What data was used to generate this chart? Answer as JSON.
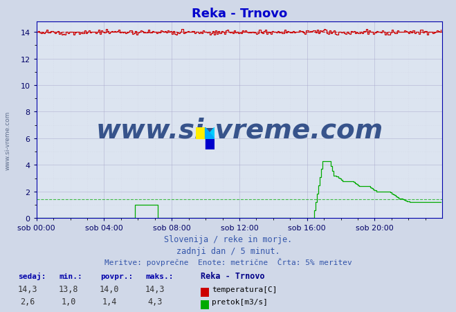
{
  "title": "Reka - Trnovo",
  "title_color": "#0000cc",
  "bg_color": "#d0d8e8",
  "plot_bg_color": "#dce4f0",
  "xlabel_ticks": [
    "sob 00:00",
    "sob 04:00",
    "sob 08:00",
    "sob 12:00",
    "sob 16:00",
    "sob 20:00"
  ],
  "yticks": [
    0,
    2,
    4,
    6,
    8,
    10,
    12,
    14
  ],
  "ylim": [
    0,
    14.8
  ],
  "xlim": [
    0,
    288
  ],
  "grid_color_major": "#aaaacc",
  "grid_color_minor": "#ccccdd",
  "temp_color": "#cc0000",
  "flow_color": "#00aa00",
  "avg_temp": 14.0,
  "avg_flow": 1.4,
  "watermark_text": "www.si-vreme.com",
  "watermark_color": "#1a3a7a",
  "footer_line1": "Slovenija / reke in morje.",
  "footer_line2": "zadnji dan / 5 minut.",
  "footer_line3": "Meritve: povprečne  Enote: metrične  Črta: 5% meritev",
  "footer_color": "#3355aa",
  "legend_title": "Reka - Trnovo",
  "legend_title_color": "#000088",
  "table_headers": [
    "sedaj:",
    "min.:",
    "povpr.:",
    "maks.:"
  ],
  "temp_values": [
    "14,3",
    "13,8",
    "14,0",
    "14,3"
  ],
  "flow_values": [
    "2,6",
    "1,0",
    "1,4",
    "4,3"
  ],
  "temp_label": "temperatura[C]",
  "flow_label": "pretok[m3/s]",
  "n_points": 288
}
